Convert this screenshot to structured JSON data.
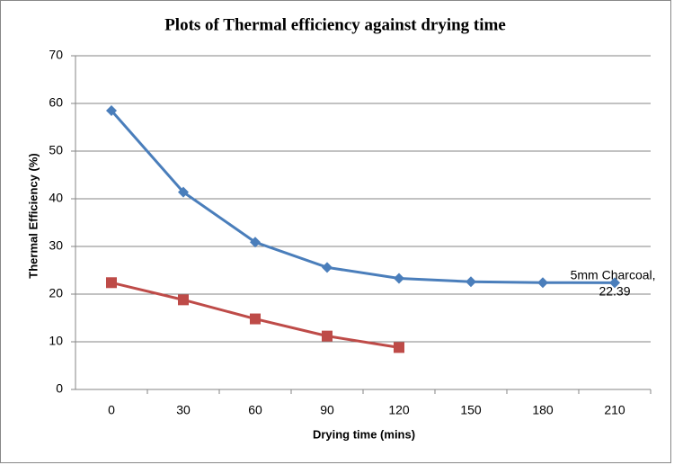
{
  "chart_data": {
    "type": "line",
    "title": "Plots of Thermal  efficiency against drying  time",
    "x_label": "Drying time (mins)",
    "y_label": "Thermal Efficiency (%)",
    "categories": [
      "0",
      "30",
      "60",
      "90",
      "120",
      "150",
      "180",
      "210"
    ],
    "series": [
      {
        "color": "#4a7ebb",
        "marker": "diamond",
        "values": [
          58.5,
          41.4,
          30.9,
          25.6,
          23.3,
          22.6,
          22.4,
          22.39
        ],
        "value_labels": [
          null,
          null,
          null,
          null,
          null,
          null,
          null,
          "5mm Charcoal, 22.39"
        ]
      },
      {
        "color": "#be4b48",
        "marker": "square",
        "values": [
          22.4,
          18.8,
          14.8,
          11.2,
          8.8,
          null,
          null,
          null
        ]
      }
    ],
    "ylim": [
      0,
      70
    ],
    "yticks": [
      0,
      10,
      20,
      30,
      40,
      50,
      60,
      70
    ],
    "grid": true
  }
}
